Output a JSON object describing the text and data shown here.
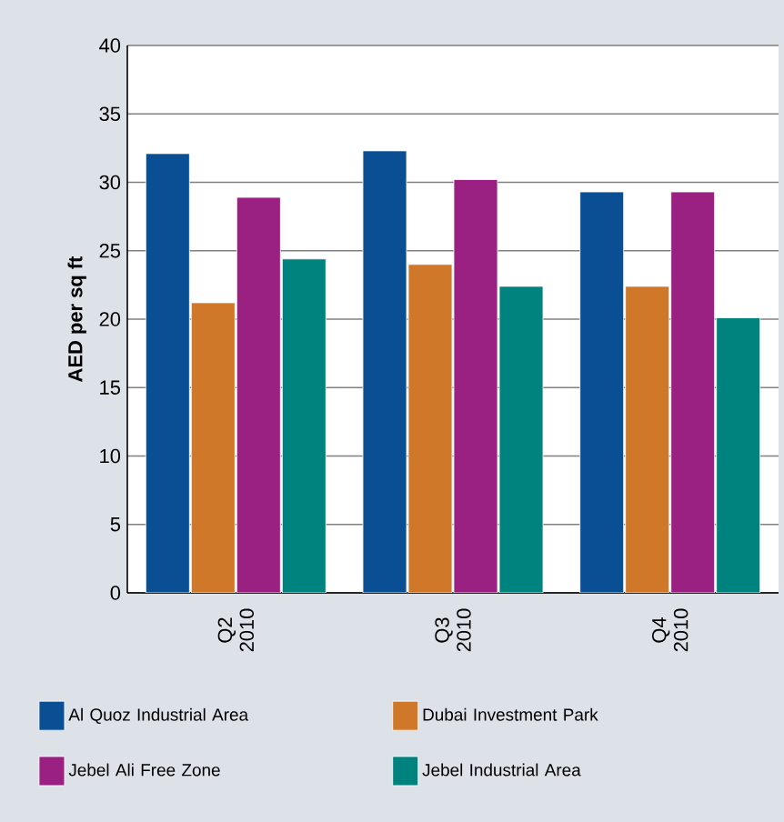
{
  "chart_data": {
    "type": "bar",
    "ylabel": "AED per sq ft",
    "categories": [
      "Q2 2010",
      "Q3 2010",
      "Q4 2010"
    ],
    "series": [
      {
        "name": "Al Quoz Industrial Area",
        "color": "#0a4f94",
        "values": [
          32.1,
          32.3,
          29.3
        ]
      },
      {
        "name": "Dubai Investment Park",
        "color": "#d0782a",
        "values": [
          21.2,
          24.0,
          22.4
        ]
      },
      {
        "name": "Jebel Ali Free Zone",
        "color": "#9a2182",
        "values": [
          28.9,
          30.2,
          29.3
        ]
      },
      {
        "name": "Jebel Industrial Area",
        "color": "#00837e",
        "values": [
          24.4,
          22.4,
          20.1
        ]
      }
    ],
    "ylim": [
      0,
      40
    ],
    "yticks": [
      0,
      5,
      10,
      15,
      20,
      25,
      30,
      35,
      40
    ],
    "grid": "y",
    "legend": "bottom"
  }
}
